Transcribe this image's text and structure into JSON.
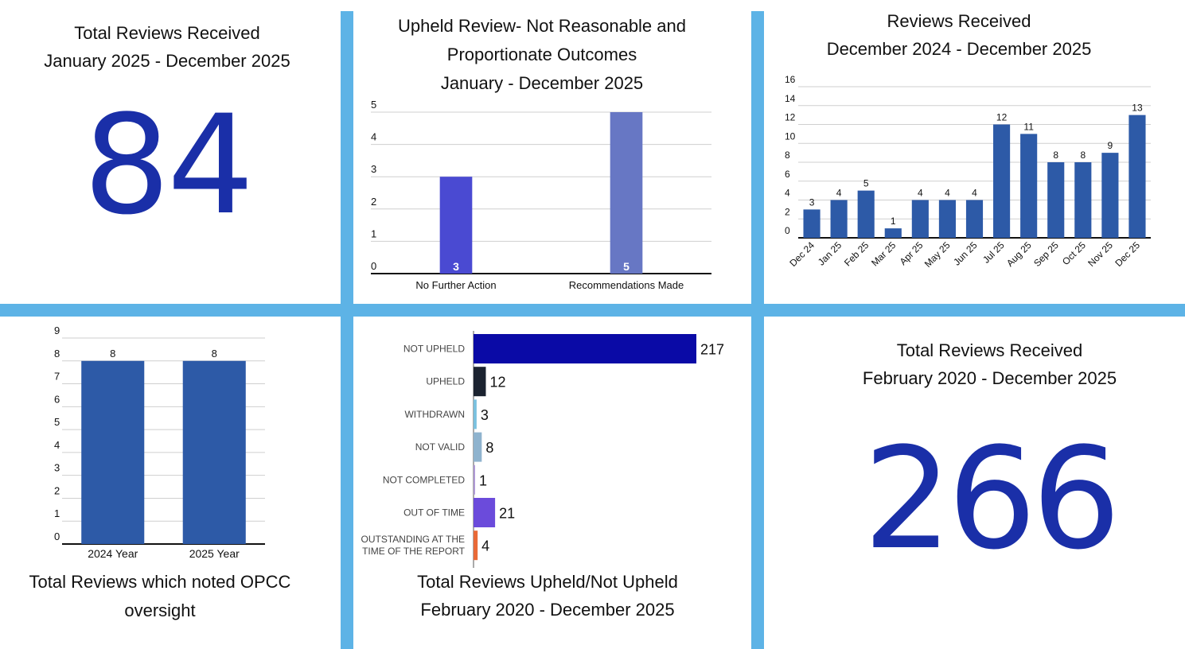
{
  "colors": {
    "divider": "#5db3e6",
    "big_number": "#1a2fa8",
    "bar_blue": "#2d5aa7",
    "bar_violet": "#4a4ad2",
    "bar_lavender": "#6777c4"
  },
  "panel_total_2025": {
    "title_line1": "Total Reviews Received",
    "title_line2": "January 2025 - December 2025",
    "value": "84"
  },
  "panel_total_all": {
    "title_line1": "Total Reviews Received",
    "title_line2": "February 2020 - December 2025",
    "value": "266"
  },
  "chart_data": [
    {
      "id": "upheld_outcomes",
      "type": "bar",
      "title_lines": [
        "Upheld Review- Not Reasonable and",
        "Proportionate Outcomes",
        "January - December 2025"
      ],
      "categories": [
        "No Further Action",
        "Recommendations Made"
      ],
      "values": [
        3,
        5
      ],
      "bar_colors": [
        "#4a4ad2",
        "#6777c4"
      ],
      "ylim": [
        0,
        5
      ],
      "yticks": [
        0,
        1,
        2,
        3,
        4,
        5
      ],
      "grid": true
    },
    {
      "id": "monthly_reviews",
      "type": "bar",
      "title_lines": [
        "Reviews Received",
        "December 2024 - December 2025"
      ],
      "categories": [
        "Dec 24",
        "Jan 25",
        "Feb 25",
        "Mar 25",
        "Apr 25",
        "May 25",
        "Jun 25",
        "Jul 25",
        "Aug 25",
        "Sep 25",
        "Oct 25",
        "Nov 25",
        "Dec 25"
      ],
      "values": [
        3,
        4,
        5,
        1,
        4,
        4,
        4,
        12,
        11,
        8,
        8,
        9,
        13
      ],
      "ylim": [
        0,
        16
      ],
      "yticks": [
        0,
        2,
        4,
        6,
        8,
        10,
        12,
        14,
        16
      ],
      "grid": true
    },
    {
      "id": "opcc_oversight",
      "type": "bar",
      "title_lines": [
        "Total Reviews which noted OPCC",
        "oversight"
      ],
      "categories": [
        "2024 Year",
        "2025 Year"
      ],
      "values": [
        8,
        8
      ],
      "ylim": [
        0,
        9
      ],
      "yticks": [
        0,
        1,
        2,
        3,
        4,
        5,
        6,
        7,
        8,
        9
      ],
      "grid": true
    },
    {
      "id": "upheld_not_upheld",
      "type": "bar",
      "orientation": "horizontal",
      "title_lines": [
        "Total Reviews  Upheld/Not Upheld",
        "February 2020 - December 2025"
      ],
      "categories": [
        "NOT UPHELD",
        "UPHELD",
        "WITHDRAWN",
        "NOT VALID",
        "NOT COMPLETED",
        "OUT OF TIME",
        "OUTSTANDING AT THE\nTIME OF THE REPORT"
      ],
      "values": [
        217,
        12,
        3,
        8,
        1,
        21,
        4
      ],
      "bar_colors": [
        "#0a0aa6",
        "#1b2330",
        "#7ac1df",
        "#8fb3ce",
        "#b09ad6",
        "#6b4bdb",
        "#e96a38"
      ],
      "xlim": [
        0,
        217
      ]
    }
  ]
}
